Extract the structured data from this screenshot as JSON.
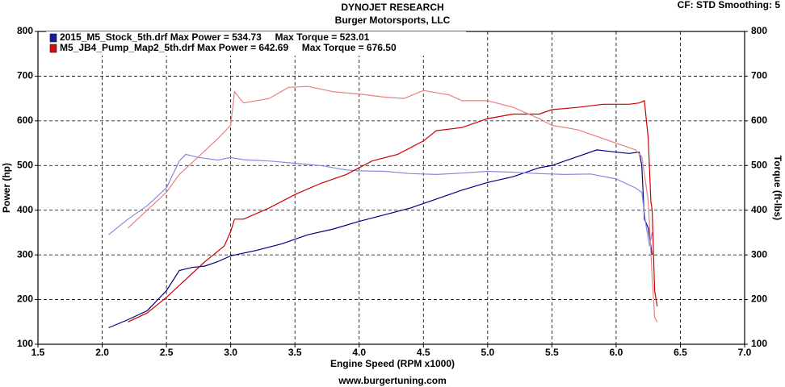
{
  "chart_data": {
    "type": "line",
    "title": "DYNOJET RESEARCH",
    "subtitle": "Burger Motorsports, LLC",
    "corner_note": "CF: STD  Smoothing: 5",
    "x_label": "Engine Speed (RPM x1000)",
    "y_label": "Power (hp)",
    "y2_label": "Torque (ft-lbs)",
    "footer": "www.burgertuning.com",
    "xlim": [
      1.5,
      7.0
    ],
    "xticks": [
      1.5,
      {
        "value": 2,
        "label": "2.0"
      },
      2.5,
      {
        "value": 3,
        "label": "3.0"
      },
      3.5,
      {
        "value": 4,
        "label": "4.0"
      },
      4.5,
      {
        "value": 5,
        "label": "5.0"
      },
      5.5,
      {
        "value": 6,
        "label": "6.0"
      },
      6.5,
      {
        "value": 7,
        "label": "7.0"
      }
    ],
    "ylim": [
      100,
      800
    ],
    "yticks": [
      100,
      200,
      300,
      400,
      500,
      600,
      700,
      800
    ],
    "y2lim": [
      100,
      800
    ],
    "y2ticks": [
      100,
      200,
      300,
      400,
      500,
      600,
      700,
      800
    ],
    "grid": true,
    "legend": [
      {
        "label": "2015_M5_Stock_5th.drf Max Power = 534.73     Max Torque = 523.01",
        "color": "#1a1aa0"
      },
      {
        "label": "M5_JB4_Pump_Map2_5th.drf Max Power = 642.69     Max Torque = 676.50",
        "color": "#d01010"
      }
    ],
    "series": [
      {
        "color": "#000080",
        "x": [
          2.05,
          2.2,
          2.35,
          2.5,
          2.6,
          2.7,
          2.8,
          2.9,
          3.0,
          3.2,
          3.4,
          3.6,
          3.8,
          4.0,
          4.2,
          4.4,
          4.6,
          4.8,
          5.0,
          5.2,
          5.4,
          5.5,
          5.6,
          5.7,
          5.85,
          6.0,
          6.1,
          6.18,
          6.2,
          6.22,
          6.25,
          6.28
        ],
        "values": [
          137,
          155,
          175,
          220,
          265,
          272,
          275,
          285,
          298,
          310,
          325,
          345,
          358,
          375,
          390,
          405,
          425,
          445,
          462,
          475,
          495,
          500,
          510,
          520,
          535,
          530,
          527,
          530,
          500,
          380,
          360,
          300
        ]
      },
      {
        "color": "#8888e0",
        "x": [
          2.05,
          2.2,
          2.35,
          2.5,
          2.6,
          2.65,
          2.75,
          2.9,
          3.0,
          3.1,
          3.3,
          3.5,
          3.7,
          3.9,
          4.0,
          4.2,
          4.4,
          4.6,
          4.8,
          5.0,
          5.2,
          5.4,
          5.6,
          5.8,
          6.0,
          6.15,
          6.2,
          6.23,
          6.26,
          6.28
        ],
        "values": [
          345,
          380,
          410,
          450,
          510,
          525,
          518,
          512,
          518,
          513,
          510,
          505,
          500,
          490,
          488,
          487,
          482,
          480,
          483,
          487,
          485,
          482,
          480,
          481,
          470,
          450,
          440,
          370,
          320,
          350
        ]
      },
      {
        "color": "#cc0000",
        "x": [
          2.2,
          2.35,
          2.5,
          2.65,
          2.8,
          2.95,
          3.0,
          3.03,
          3.1,
          3.3,
          3.5,
          3.7,
          3.9,
          4.1,
          4.3,
          4.5,
          4.6,
          4.8,
          5.0,
          5.2,
          5.4,
          5.5,
          5.7,
          5.9,
          6.1,
          6.18,
          6.22,
          6.25,
          6.27,
          6.28,
          6.3,
          6.32
        ],
        "values": [
          150,
          170,
          205,
          245,
          285,
          320,
          352,
          380,
          380,
          405,
          435,
          460,
          480,
          510,
          525,
          555,
          578,
          585,
          605,
          615,
          615,
          625,
          630,
          637,
          637,
          640,
          645,
          560,
          420,
          400,
          220,
          185
        ]
      },
      {
        "color": "#e88080",
        "x": [
          2.2,
          2.35,
          2.5,
          2.6,
          2.75,
          2.9,
          3.0,
          3.03,
          3.1,
          3.3,
          3.45,
          3.6,
          3.8,
          4.0,
          4.2,
          4.35,
          4.5,
          4.7,
          4.8,
          5.0,
          5.2,
          5.4,
          5.5,
          5.7,
          5.9,
          6.05,
          6.15,
          6.2,
          6.25,
          6.28,
          6.3,
          6.32
        ],
        "values": [
          360,
          400,
          440,
          480,
          520,
          560,
          590,
          665,
          640,
          650,
          675,
          677,
          665,
          660,
          653,
          650,
          668,
          658,
          645,
          645,
          630,
          605,
          590,
          580,
          560,
          545,
          535,
          520,
          420,
          250,
          160,
          150
        ]
      }
    ]
  }
}
